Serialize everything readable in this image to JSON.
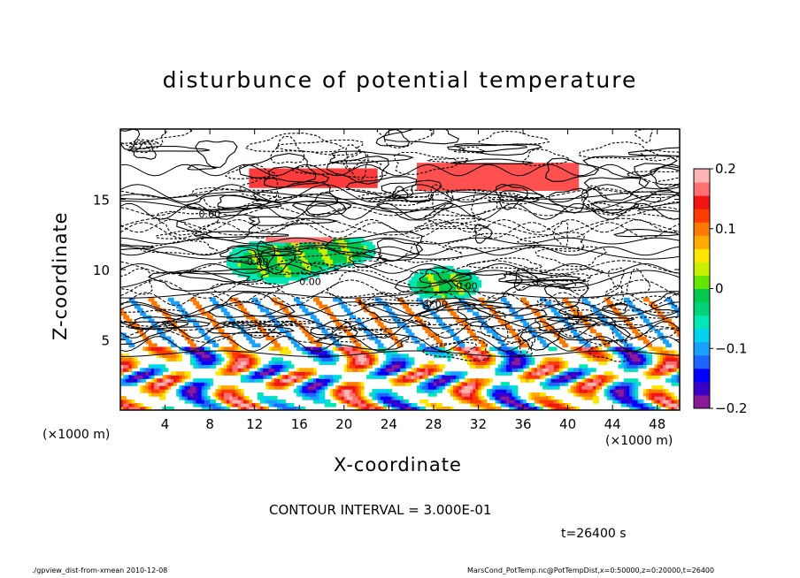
{
  "chart_data": {
    "type": "heatmap",
    "title": "disturbunce of potential temperature",
    "xlabel": "X-coordinate",
    "ylabel": "Z-coordinate",
    "x_unit": "(×1000 m)",
    "x_ticks": [
      4,
      8,
      12,
      16,
      20,
      24,
      28,
      32,
      36,
      40,
      44,
      48
    ],
    "y_ticks": [
      5,
      10,
      15
    ],
    "xlim": [
      0,
      50
    ],
    "ylim": [
      0,
      20
    ],
    "colorbar": {
      "ticks": [
        "0.2",
        "0.1",
        "0",
        "−0.1",
        "−0.2"
      ],
      "tick_values": [
        0.2,
        0.1,
        0,
        -0.1,
        -0.2
      ],
      "range": [
        -0.2,
        0.2
      ],
      "colors": [
        "#8b1a9b",
        "#3a00c8",
        "#0000ff",
        "#1e64ff",
        "#1aa0ff",
        "#00d2f0",
        "#00e6b4",
        "#00d278",
        "#00c850",
        "#64e600",
        "#c8f000",
        "#ffe600",
        "#ffaa00",
        "#ff7800",
        "#ff3c00",
        "#f01414",
        "#ff7070",
        "#ffb4b4"
      ]
    },
    "contour_interval_text": "CONTOUR INTERVAL = 3.000E-01",
    "contour_labels": [
      "-0.00",
      "0.00",
      "0.00",
      "-0.00",
      "0.00"
    ],
    "time_text": "t=26400 s"
  },
  "footer": {
    "left": "./gpview_dist-from-xmean   2010-12-08",
    "right": "MarsCond_PotTemp.nc@PotTempDist,x=0:50000,z=0:20000,t=26400"
  },
  "colors": {
    "background": "#ffffff",
    "low_stratum_red": "#ff1e1e",
    "low_stratum_blue": "#1428ff",
    "mid_green": "#22d83c",
    "mid_cyan": "#18d2e0"
  }
}
